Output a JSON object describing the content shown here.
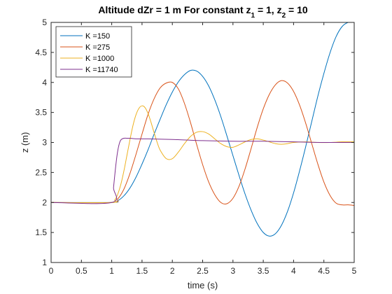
{
  "chart_data": {
    "type": "line",
    "title": "Altitude dZr = 1 m   For constant z",
    "title_parts": {
      "main": "Altitude dZr = 1 m   For constant z",
      "sub1": "1",
      "mid": " = 1, z",
      "sub2": "2",
      "end": " = 10"
    },
    "xlabel": "time (s)",
    "ylabel": "z (m)",
    "xlim": [
      0,
      5
    ],
    "ylim": [
      1,
      5
    ],
    "xticks": [
      "0",
      "0.5",
      "1",
      "1.5",
      "2",
      "2.5",
      "3",
      "3.5",
      "4",
      "4.5",
      "5"
    ],
    "yticks": [
      "1",
      "1.5",
      "2",
      "2.5",
      "3",
      "3.5",
      "4",
      "4.5",
      "5"
    ],
    "grid": false,
    "legend_position": "top-left",
    "series": [
      {
        "name": "K =150",
        "color": "#0072BD",
        "x": [
          0,
          1.0,
          1.1,
          1.2,
          1.3,
          1.4,
          1.5,
          1.6,
          1.7,
          1.8,
          1.9,
          2.0,
          2.1,
          2.2,
          2.3,
          2.4,
          2.5,
          2.6,
          2.7,
          2.8,
          2.9,
          3.0,
          3.1,
          3.2,
          3.3,
          3.4,
          3.5,
          3.6,
          3.7,
          3.8,
          3.9,
          4.0,
          4.1,
          4.2,
          4.3,
          4.4,
          4.5,
          4.6,
          4.7,
          4.8,
          4.9,
          5.0
        ],
        "y": [
          2.0,
          2.0,
          2.03,
          2.11,
          2.24,
          2.42,
          2.64,
          2.88,
          3.14,
          3.39,
          3.63,
          3.84,
          4.01,
          4.13,
          4.2,
          4.19,
          4.1,
          3.94,
          3.71,
          3.43,
          3.11,
          2.78,
          2.45,
          2.14,
          1.87,
          1.65,
          1.5,
          1.44,
          1.48,
          1.62,
          1.85,
          2.16,
          2.53,
          2.93,
          3.35,
          3.77,
          4.15,
          4.49,
          4.76,
          4.93,
          5.0,
          5.0
        ]
      },
      {
        "name": "K =275",
        "color": "#D95319",
        "x": [
          0,
          1.0,
          1.1,
          1.2,
          1.3,
          1.4,
          1.5,
          1.6,
          1.7,
          1.8,
          1.9,
          2.0,
          2.1,
          2.2,
          2.3,
          2.4,
          2.5,
          2.6,
          2.7,
          2.8,
          2.9,
          3.0,
          3.1,
          3.2,
          3.3,
          3.4,
          3.5,
          3.6,
          3.7,
          3.8,
          3.9,
          4.0,
          4.1,
          4.2,
          4.3,
          4.4,
          4.5,
          4.6,
          4.7,
          4.8,
          4.9,
          5.0
        ],
        "y": [
          2.0,
          2.0,
          2.06,
          2.22,
          2.48,
          2.8,
          3.14,
          3.47,
          3.73,
          3.91,
          3.99,
          4.0,
          3.89,
          3.65,
          3.33,
          2.97,
          2.63,
          2.34,
          2.13,
          2.0,
          1.98,
          2.07,
          2.27,
          2.56,
          2.9,
          3.25,
          3.56,
          3.8,
          3.96,
          4.03,
          3.99,
          3.85,
          3.62,
          3.32,
          2.98,
          2.64,
          2.34,
          2.12,
          1.99,
          1.96,
          1.96,
          1.95
        ]
      },
      {
        "name": "K =1000",
        "color": "#EDB120",
        "x": [
          0,
          1.0,
          1.05,
          1.1,
          1.15,
          1.2,
          1.25,
          1.3,
          1.35,
          1.4,
          1.45,
          1.5,
          1.55,
          1.6,
          1.65,
          1.7,
          1.75,
          1.8,
          1.9,
          2.0,
          2.1,
          2.2,
          2.3,
          2.4,
          2.5,
          2.6,
          2.7,
          2.8,
          2.9,
          3.0,
          3.1,
          3.2,
          3.3,
          3.4,
          3.5,
          3.6,
          3.7,
          3.8,
          3.9,
          4.0,
          4.2,
          4.4,
          4.6,
          4.8,
          5.0
        ],
        "y": [
          2.0,
          2.0,
          2.04,
          2.14,
          2.3,
          2.52,
          2.78,
          3.04,
          3.28,
          3.46,
          3.57,
          3.61,
          3.58,
          3.48,
          3.33,
          3.16,
          3.0,
          2.87,
          2.73,
          2.73,
          2.84,
          2.98,
          3.1,
          3.17,
          3.18,
          3.14,
          3.06,
          2.98,
          2.93,
          2.92,
          2.96,
          3.01,
          3.05,
          3.06,
          3.04,
          3.01,
          2.98,
          2.97,
          2.98,
          3.0,
          3.01,
          3.0,
          3.0,
          3.01,
          3.01
        ]
      },
      {
        "name": "K =11740",
        "color": "#7E2F8E",
        "x": [
          0,
          1.0,
          1.03,
          1.06,
          1.09,
          1.12,
          1.15,
          1.2,
          1.25,
          1.3,
          1.4,
          1.6,
          2.0,
          2.5,
          3.0,
          3.5,
          4.0,
          4.5,
          5.0
        ],
        "y": [
          2.0,
          2.0,
          2.25,
          2.55,
          2.8,
          2.96,
          3.04,
          3.07,
          3.07,
          3.07,
          3.06,
          3.06,
          3.05,
          3.03,
          3.02,
          3.02,
          3.01,
          3.0,
          3.0
        ]
      }
    ]
  }
}
